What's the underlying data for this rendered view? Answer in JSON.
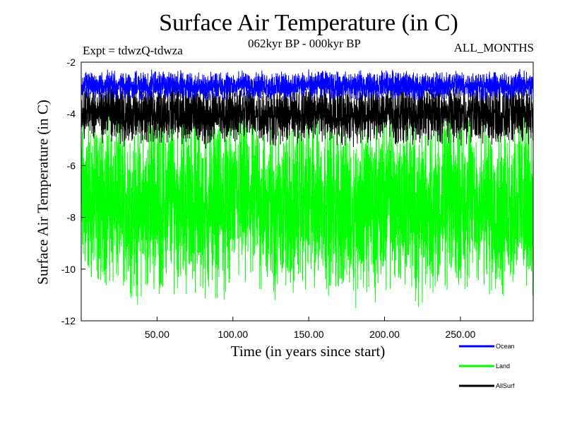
{
  "chart_data": {
    "type": "line",
    "title": "Surface Air Temperature (in C)",
    "subtitle": "062kyr BP - 000kyr BP",
    "experiment": "Expt = tdwzQ-tdwza",
    "period": "ALL_MONTHS",
    "xlabel": "Time (in years since start)",
    "ylabel": "Surface Air Temperature (in C)",
    "xlim": [
      0,
      298
    ],
    "ylim": [
      -12,
      -2
    ],
    "x_ticks": [
      50,
      100,
      150,
      200,
      250
    ],
    "x_tick_labels": [
      "50.00",
      "100.00",
      "150.00",
      "200.00",
      "250.00"
    ],
    "y_ticks": [
      -2,
      -4,
      -6,
      -8,
      -10,
      -12
    ],
    "y_tick_labels": [
      "-2",
      "-4",
      "-6",
      "-8",
      "-10",
      "-12"
    ],
    "legend_position": "bottom-right",
    "series": [
      {
        "name": "Ocean",
        "color": "#0000ff",
        "approx_range": [
          -3.5,
          -2.2
        ],
        "mean": -2.9
      },
      {
        "name": "Land",
        "color": "#00ff00",
        "approx_range": [
          -11.7,
          -3.6
        ],
        "mean": -7.5
      },
      {
        "name": "AllSurf",
        "color": "#000000",
        "approx_range": [
          -5.4,
          -2.7
        ],
        "mean": -4.0
      }
    ]
  }
}
